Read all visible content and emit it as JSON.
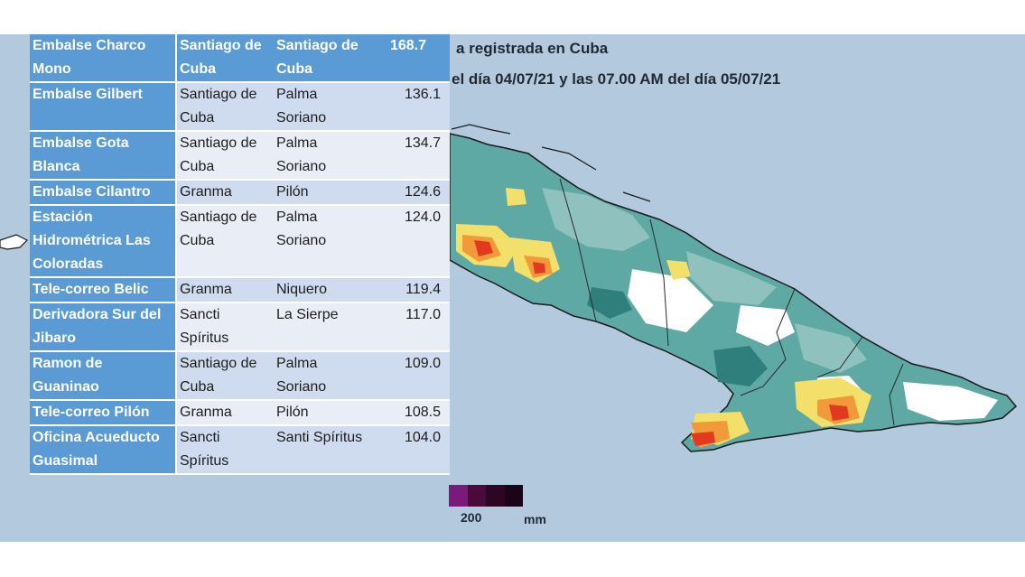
{
  "map": {
    "title_line1": "a registrada en Cuba",
    "title_line2": "el día 04/07/21 y las 07.00 AM del día 05/07/21",
    "legend_value": "200",
    "legend_unit": "mm",
    "legend_colors": [
      "#7a1a7a",
      "#4a0b3a",
      "#2c0622",
      "#1a0418"
    ],
    "colors": {
      "sea": "#b3c9dd",
      "land_base": "#5ea9a4",
      "land_light": "#8fc2bf",
      "dark_teal": "#2f7f7c",
      "no_rain": "#ffffff",
      "yellow": "#f3e06a",
      "orange": "#f19a3a",
      "red": "#e23a20"
    }
  },
  "table": {
    "rows": [
      {
        "name": "Embalse Charco Mono",
        "province": "Santiago de Cuba",
        "municipality": "Santiago de Cuba",
        "value": "168.7"
      },
      {
        "name": "Embalse Gilbert",
        "province": "Santiago de Cuba",
        "municipality": "Palma Soriano",
        "value": "136.1"
      },
      {
        "name": "Embalse Gota Blanca",
        "province": "Santiago de Cuba",
        "municipality": "Palma Soriano",
        "value": "134.7"
      },
      {
        "name": "Embalse Cilantro",
        "province": "Granma",
        "municipality": "Pilón",
        "value": "124.6"
      },
      {
        "name": "Estación Hidrométrica Las Coloradas",
        "province": "Santiago de Cuba",
        "municipality": "Palma Soriano",
        "value": "124.0"
      },
      {
        "name": "Tele-correo Belic",
        "province": "Granma",
        "municipality": "Niquero",
        "value": "119.4"
      },
      {
        "name": "Derivadora Sur del Jibaro",
        "province": "Sancti Spíritus",
        "municipality": "La Sierpe",
        "value": "117.0"
      },
      {
        "name": "Ramon de Guaninao",
        "province": "Santiago de Cuba",
        "municipality": "Palma Soriano",
        "value": "109.0"
      },
      {
        "name": "Tele-correo Pilón",
        "province": "Granma",
        "municipality": "Pilón",
        "value": "108.5"
      },
      {
        "name": "Oficina Acueducto Guasimal",
        "province": "Sancti Spíritus",
        "municipality": "Santi Spíritus",
        "value": "104.0"
      }
    ]
  }
}
